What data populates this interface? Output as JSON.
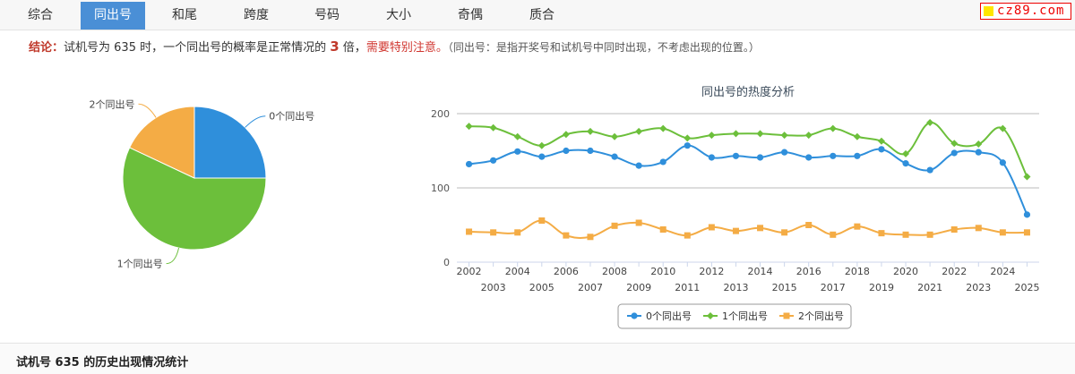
{
  "tabs": [
    {
      "label": "综合",
      "active": false
    },
    {
      "label": "同出号",
      "active": true
    },
    {
      "label": "和尾",
      "active": false
    },
    {
      "label": "跨度",
      "active": false
    },
    {
      "label": "号码",
      "active": false
    },
    {
      "label": "大小",
      "active": false
    },
    {
      "label": "奇偶",
      "active": false
    },
    {
      "label": "质合",
      "active": false
    }
  ],
  "logo_text": "cz89.com",
  "conclusion": {
    "label": "结论：",
    "text_before": "试机号为 635 时，一个同出号的概率是正常情况的 ",
    "multiplier": "3",
    "text_after": " 倍，",
    "warning": "需要特别注意。",
    "note": "（同出号：是指开奖号和试机号中同时出现，不考虑出现的位置。）"
  },
  "footer_title": "试机号 635 的历史出现情况统计",
  "chart_data": [
    {
      "type": "pie",
      "labels": [
        "0个同出号",
        "1个同出号",
        "2个同出号"
      ],
      "values": [
        25,
        57,
        18
      ],
      "colors": [
        "#2f8fdb",
        "#6cbf3b",
        "#f4ac45"
      ]
    },
    {
      "type": "line",
      "title": "同出号的热度分析",
      "x": [
        "2002",
        "2003",
        "2004",
        "2005",
        "2006",
        "2007",
        "2008",
        "2009",
        "2010",
        "2011",
        "2012",
        "2013",
        "2014",
        "2015",
        "2016",
        "2017",
        "2018",
        "2019",
        "2020",
        "2021",
        "2022",
        "2023",
        "2024",
        "2025"
      ],
      "ylim": [
        0,
        200
      ],
      "yticks": [
        0,
        100,
        200
      ],
      "legend_position": "bottom",
      "series": [
        {
          "name": "0个同出号",
          "color": "#2f8fdb",
          "marker": "circle",
          "values": [
            132,
            137,
            149,
            142,
            150,
            150,
            142,
            130,
            135,
            157,
            141,
            143,
            141,
            148,
            141,
            143,
            143,
            152,
            133,
            124,
            147,
            148,
            134,
            64
          ]
        },
        {
          "name": "1个同出号",
          "color": "#6cbf3b",
          "marker": "diamond",
          "values": [
            183,
            181,
            169,
            157,
            172,
            176,
            169,
            176,
            180,
            167,
            171,
            173,
            173,
            171,
            171,
            180,
            169,
            163,
            146,
            188,
            160,
            159,
            180,
            115
          ]
        },
        {
          "name": "2个同出号",
          "color": "#f4ac45",
          "marker": "square",
          "values": [
            41,
            40,
            40,
            56,
            36,
            34,
            49,
            53,
            44,
            36,
            47,
            42,
            46,
            40,
            50,
            37,
            48,
            39,
            37,
            37,
            44,
            46,
            40,
            40
          ]
        }
      ]
    }
  ]
}
